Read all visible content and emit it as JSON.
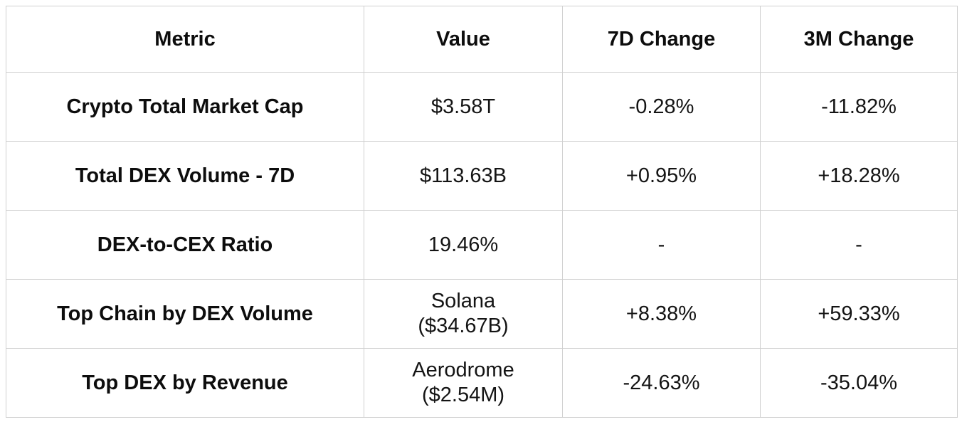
{
  "table": {
    "headers": {
      "metric": "Metric",
      "value": "Value",
      "change_7d": "7D Change",
      "change_3m": "3M Change"
    },
    "rows": [
      {
        "metric": "Crypto Total Market Cap",
        "value": "$3.58T",
        "change_7d": "-0.28%",
        "change_3m": "-11.82%"
      },
      {
        "metric": "Total DEX Volume - 7D",
        "value": "$113.63B",
        "change_7d": "+0.95%",
        "change_3m": "+18.28%"
      },
      {
        "metric": "DEX-to-CEX Ratio",
        "value": "19.46%",
        "change_7d": "-",
        "change_3m": "-"
      },
      {
        "metric": "Top Chain by DEX Volume",
        "value": "Solana\n($34.67B)",
        "change_7d": "+8.38%",
        "change_3m": "+59.33%"
      },
      {
        "metric": "Top DEX by Revenue",
        "value": "Aerodrome\n($2.54M)",
        "change_7d": "-24.63%",
        "change_3m": "-35.04%"
      }
    ]
  },
  "chart_data": {
    "type": "table",
    "columns": [
      "Metric",
      "Value",
      "7D Change",
      "3M Change"
    ],
    "rows": [
      [
        "Crypto Total Market Cap",
        "$3.58T",
        "-0.28%",
        "-11.82%"
      ],
      [
        "Total DEX Volume - 7D",
        "$113.63B",
        "+0.95%",
        "+18.28%"
      ],
      [
        "DEX-to-CEX Ratio",
        "19.46%",
        "-",
        "-"
      ],
      [
        "Top Chain by DEX Volume",
        "Solana ($34.67B)",
        "+8.38%",
        "+59.33%"
      ],
      [
        "Top DEX by Revenue",
        "Aerodrome ($2.54M)",
        "-24.63%",
        "-35.04%"
      ]
    ]
  },
  "colors": {
    "border": "#d0d0d0",
    "text": "#141414",
    "background": "#ffffff"
  }
}
